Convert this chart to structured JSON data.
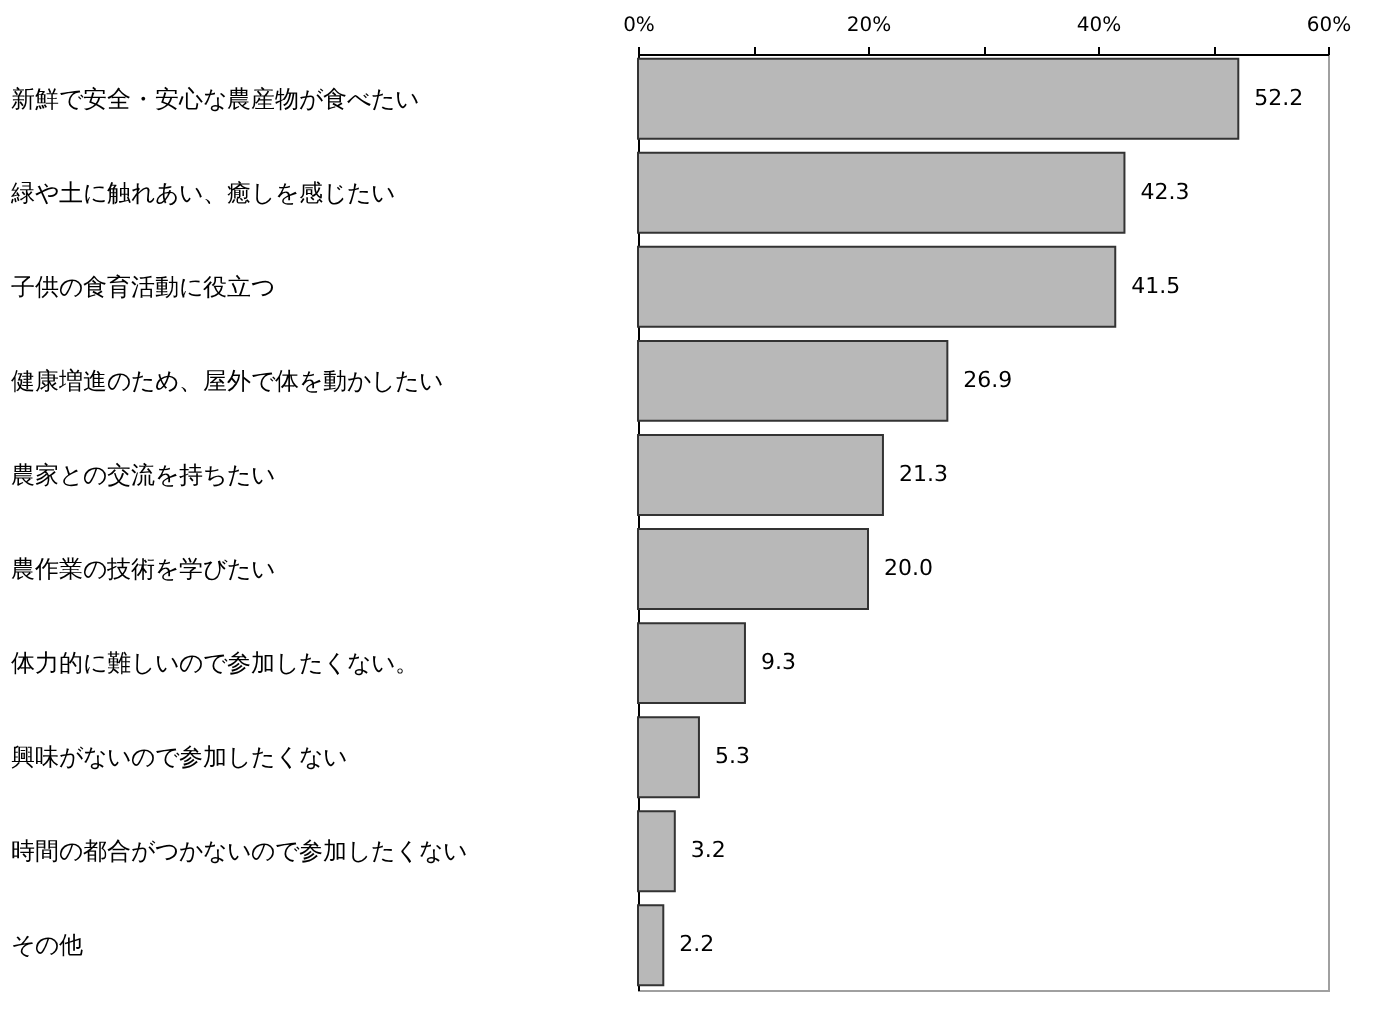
{
  "chart_data": {
    "type": "bar",
    "orientation": "horizontal",
    "categories": [
      "新鮮で安全・安心な農産物が食べたい",
      "緑や土に触れあい、癒しを感じたい",
      "子供の食育活動に役立つ",
      "健康増進のため、屋外で体を動かしたい",
      "農家との交流を持ちたい",
      "農作業の技術を学びたい",
      "体力的に難しいので参加したくない。",
      "興味がないので参加したくない",
      "時間の都合がつかないので参加したくない",
      "その他"
    ],
    "values": [
      52.2,
      42.3,
      41.5,
      26.9,
      21.3,
      20.0,
      9.3,
      5.3,
      3.2,
      2.2
    ],
    "value_labels": [
      "52.2",
      "42.3",
      "41.5",
      "26.9",
      "21.3",
      "20.0",
      "9.3",
      "5.3",
      "3.2",
      "2.2"
    ],
    "color": "#b8b8b8",
    "xlim": [
      0,
      60
    ],
    "xticks": [
      {
        "value": 0,
        "label": "0%"
      },
      {
        "value": 10,
        "label": null
      },
      {
        "value": 20,
        "label": "20%"
      },
      {
        "value": 30,
        "label": null
      },
      {
        "value": 40,
        "label": "40%"
      },
      {
        "value": 50,
        "label": null
      },
      {
        "value": 60,
        "label": "60%"
      }
    ]
  }
}
